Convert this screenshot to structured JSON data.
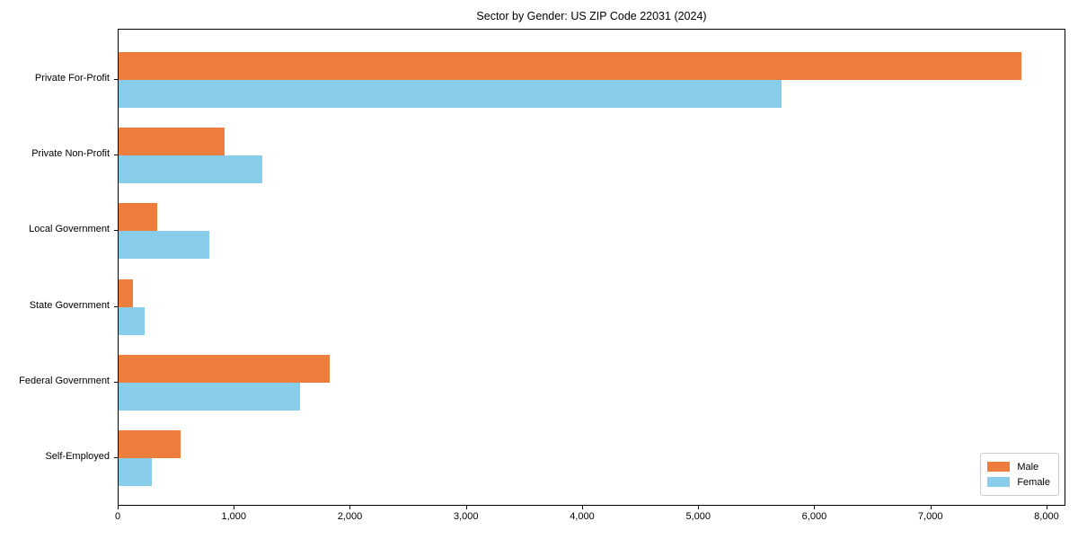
{
  "title": "Sector by Gender: US ZIP Code 22031 (2024)",
  "colors": {
    "male": "#ec7d3c",
    "female": "#88cdea",
    "axis": "#000000",
    "legend_border": "#cccccc",
    "background": "#ffffff"
  },
  "chart_data": {
    "type": "bar",
    "orientation": "horizontal",
    "title": "Sector by Gender: US ZIP Code 22031 (2024)",
    "xlabel": "",
    "ylabel": "",
    "categories": [
      "Private For-Profit",
      "Private Non-Profit",
      "Local Government",
      "State Government",
      "Federal Government",
      "Self-Employed"
    ],
    "series": [
      {
        "name": "Male",
        "color": "#ec7d3c",
        "values": [
          7775,
          910,
          335,
          125,
          1820,
          535
        ]
      },
      {
        "name": "Female",
        "color": "#88cdea",
        "values": [
          5710,
          1240,
          780,
          225,
          1560,
          290
        ]
      }
    ],
    "xlim": [
      0,
      8163
    ],
    "xticks": [
      0,
      1000,
      2000,
      3000,
      4000,
      5000,
      6000,
      7000,
      8000
    ],
    "xtick_labels": [
      "0",
      "1,000",
      "2,000",
      "3,000",
      "4,000",
      "5,000",
      "6,000",
      "7,000",
      "8,000"
    ],
    "grid": false,
    "legend": {
      "position": "lower right",
      "entries": [
        "Male",
        "Female"
      ]
    }
  }
}
